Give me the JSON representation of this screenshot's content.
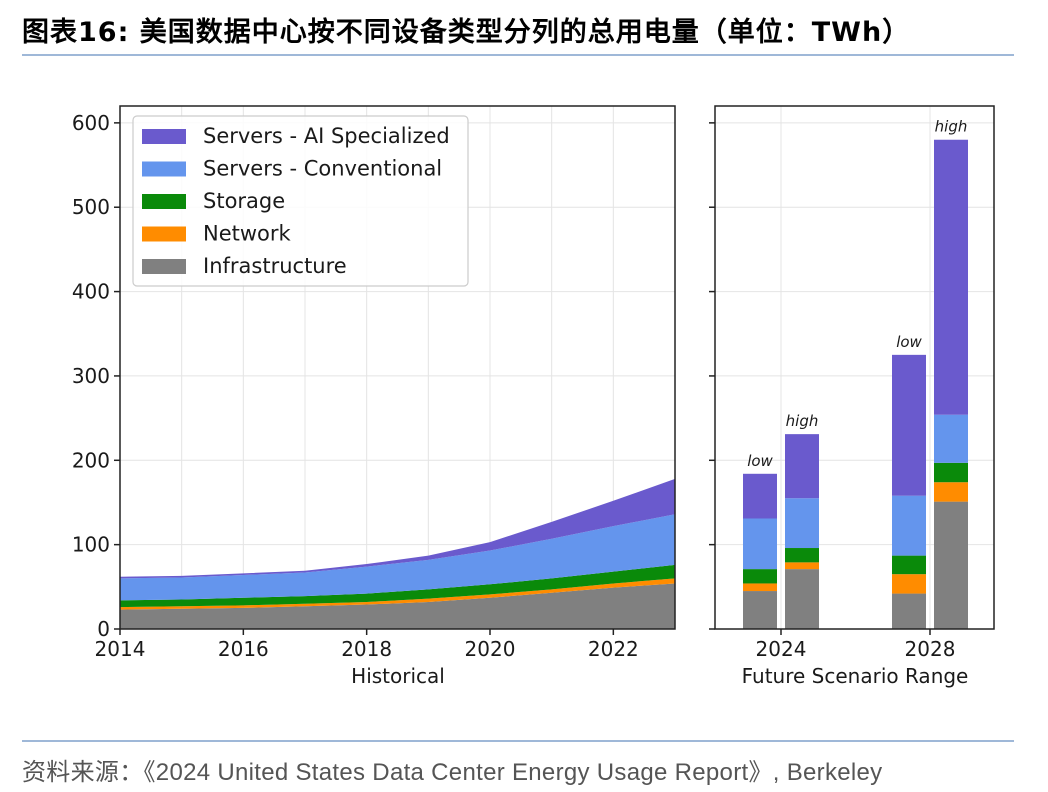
{
  "header": {
    "title": "图表16:  美国数据中心按不同设备类型分列的总用电量（单位：TWh）"
  },
  "footer": {
    "source": "资料来源：《2024 United States Data Center Energy Usage Report》, Berkeley"
  },
  "colors": {
    "ai": "#6a5acd",
    "conventional": "#6495ed",
    "storage": "#0a8a0a",
    "network": "#ff8c00",
    "infrastructure": "#808080"
  },
  "chart_data": [
    {
      "type": "area",
      "stacked": true,
      "xlabel": "Historical",
      "ylabel": "",
      "xlim": [
        2014,
        2023
      ],
      "ylim": [
        0,
        620
      ],
      "x_ticks": [
        "2014",
        "2016",
        "2018",
        "2020",
        "2022"
      ],
      "y_ticks": [
        "0",
        "100",
        "200",
        "300",
        "400",
        "500",
        "600"
      ],
      "grid": true,
      "legend": {
        "position": "top-left",
        "entries": [
          "Servers - AI Specialized",
          "Servers - Conventional",
          "Storage",
          "Network",
          "Infrastructure"
        ]
      },
      "x": [
        2014,
        2015,
        2016,
        2017,
        2018,
        2019,
        2020,
        2021,
        2022,
        2023
      ],
      "series": [
        {
          "name": "Infrastructure",
          "values": [
            23,
            24,
            25,
            27,
            29,
            32,
            37,
            43,
            49,
            54
          ]
        },
        {
          "name": "Network",
          "values": [
            3,
            3,
            3,
            3,
            3,
            4,
            4,
            4,
            5,
            6
          ]
        },
        {
          "name": "Storage",
          "values": [
            8,
            8,
            9,
            9,
            10,
            11,
            12,
            13,
            14,
            16
          ]
        },
        {
          "name": "Servers - Conventional",
          "values": [
            26,
            26,
            27,
            28,
            32,
            35,
            40,
            47,
            54,
            60
          ]
        },
        {
          "name": "Servers - AI Specialized",
          "values": [
            2,
            2,
            2,
            2,
            3,
            5,
            10,
            20,
            30,
            42
          ]
        }
      ]
    },
    {
      "type": "bar",
      "stacked": true,
      "xlabel": "Future Scenario Range",
      "ylim": [
        0,
        620
      ],
      "x_ticks": [
        "2024",
        "2028"
      ],
      "bars": [
        {
          "year": "2024",
          "label": "low",
          "values": {
            "Infrastructure": 45,
            "Network": 9,
            "Storage": 17,
            "Servers - Conventional": 60,
            "Servers - AI Specialized": 53
          }
        },
        {
          "year": "2024",
          "label": "high",
          "values": {
            "Infrastructure": 71,
            "Network": 8,
            "Storage": 17,
            "Servers - Conventional": 59,
            "Servers - AI Specialized": 76
          }
        },
        {
          "year": "2028",
          "label": "low",
          "values": {
            "Infrastructure": 42,
            "Network": 23,
            "Storage": 22,
            "Servers - Conventional": 71,
            "Servers - AI Specialized": 167
          }
        },
        {
          "year": "2028",
          "label": "high",
          "values": {
            "Infrastructure": 151,
            "Network": 23,
            "Storage": 23,
            "Servers - Conventional": 57,
            "Servers - AI Specialized": 326
          }
        }
      ]
    }
  ]
}
